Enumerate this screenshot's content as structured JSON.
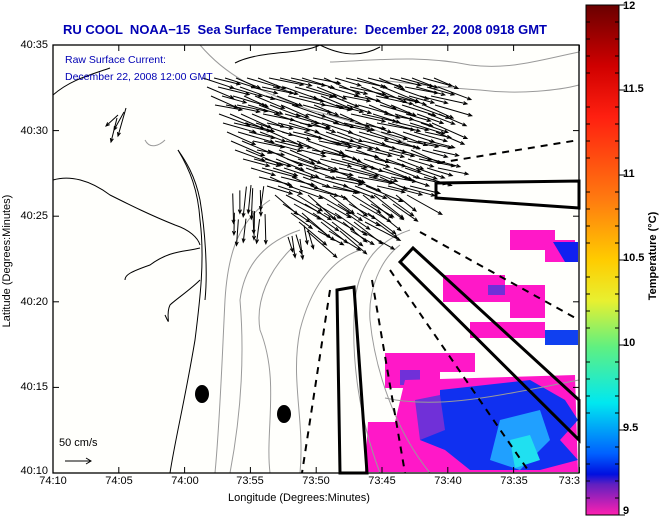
{
  "title": "RU COOL  NOAA−15  Sea Surface Temperature:  December 22, 2008 0918 GMT",
  "annotation": {
    "line1": "Raw Surface Current:",
    "line2": "December 22, 2008 12:00 GMT"
  },
  "scale_label": "50 cm/s",
  "axes": {
    "ylabel": "Latitude (Degrees:Minutes)",
    "xlabel": "Longitude (Degrees:Minutes)",
    "yticks": [
      "40:35",
      "40:30",
      "40:25",
      "40:20",
      "40:15",
      "40:10"
    ],
    "xticks": [
      "74:10",
      "74:05",
      "74:00",
      "73:55",
      "73:50",
      "73:45",
      "73:40",
      "73:35",
      "73:3"
    ]
  },
  "colorbar": {
    "label": "Temperature (°C)",
    "ticks": [
      "12",
      "11.5",
      "11",
      "10.5",
      "10",
      "9.5",
      "9"
    ],
    "min": 9,
    "max": 12
  },
  "colors": {
    "title": "#0000b4",
    "sst_low": "#ff10c0",
    "sst_mid": "#0020ff",
    "sst_high": "#00e0ff",
    "land_contour": "#000000",
    "bathymetry_contour": "#9a9a9a"
  }
}
